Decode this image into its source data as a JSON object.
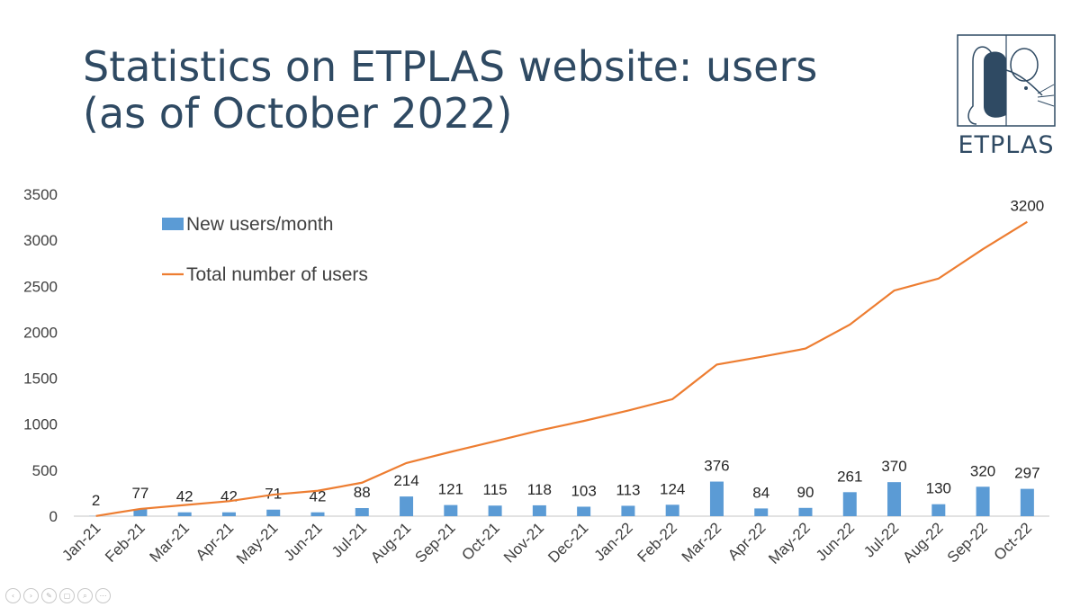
{
  "slide": {
    "title_line1": "Statistics on ETPLAS website: users",
    "title_line2": "(as of October 2022)"
  },
  "logo": {
    "text": "ETPLAS"
  },
  "colors": {
    "bar": "#5b9bd5",
    "line": "#ed7d31",
    "axis": "#d9d9d9",
    "title": "#2f4a63",
    "text": "#404040"
  },
  "toolbar": {
    "icons": [
      "previous-icon",
      "next-icon",
      "pen-icon",
      "slides-icon",
      "zoom-icon",
      "more-icon"
    ]
  },
  "chart_data": {
    "type": "bar",
    "categories": [
      "Jan-21",
      "Feb-21",
      "Mar-21",
      "Apr-21",
      "May-21",
      "Jun-21",
      "Jul-21",
      "Aug-21",
      "Sep-21",
      "Oct-21",
      "Nov-21",
      "Dec-21",
      "Jan-22",
      "Feb-22",
      "Mar-22",
      "Apr-22",
      "May-22",
      "Jun-22",
      "Jul-22",
      "Aug-22",
      "Sep-22",
      "Oct-22"
    ],
    "series": [
      {
        "name": "New users/month",
        "type": "bar",
        "values": [
          2,
          77,
          42,
          42,
          71,
          42,
          88,
          214,
          121,
          115,
          118,
          103,
          113,
          124,
          376,
          84,
          90,
          261,
          370,
          130,
          320,
          297
        ],
        "labels": [
          "2",
          "77",
          "42",
          "42",
          "71",
          "42",
          "88",
          "214",
          "121",
          "115",
          "118",
          "103",
          "113",
          "124",
          "376",
          "84",
          "90",
          "261",
          "370",
          "130",
          "320",
          "297"
        ]
      },
      {
        "name": "Total number of users",
        "type": "line",
        "values": [
          2,
          79,
          121,
          163,
          234,
          276,
          364,
          578,
          699,
          814,
          932,
          1035,
          1148,
          1272,
          1648,
          1732,
          1822,
          2083,
          2453,
          2583,
          2903,
          3200
        ],
        "end_label": "3200"
      }
    ],
    "ylim": [
      0,
      3500
    ],
    "yticks": [
      "0",
      "500",
      "1000",
      "1500",
      "2000",
      "2500",
      "3000",
      "3500"
    ],
    "ytick_values": [
      0,
      500,
      1000,
      1500,
      2000,
      2500,
      3000,
      3500
    ],
    "grid": false,
    "legend_position": "top-left"
  }
}
